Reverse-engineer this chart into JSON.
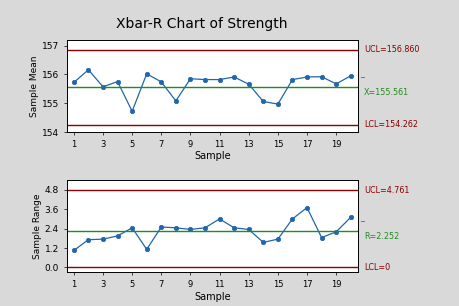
{
  "title": "Xbar-R Chart of Strength",
  "xbar_data": [
    155.72,
    156.16,
    155.57,
    155.75,
    154.72,
    156.02,
    155.74,
    155.08,
    155.85,
    155.82,
    155.82,
    155.91,
    155.66,
    155.06,
    154.97,
    155.82,
    155.91,
    155.92,
    155.67,
    155.95
  ],
  "range_data": [
    1.05,
    1.72,
    1.75,
    1.95,
    2.45,
    1.12,
    2.5,
    2.45,
    2.35,
    2.45,
    3.0,
    2.45,
    2.35,
    1.55,
    1.75,
    3.0,
    3.7,
    1.85,
    2.2,
    3.1
  ],
  "xbar_ucl": 156.86,
  "xbar_mean": 155.561,
  "xbar_lcl": 154.262,
  "range_ucl": 4.761,
  "range_mean": 2.252,
  "range_lcl": 0,
  "xbar_ylim": [
    154.0,
    157.2
  ],
  "xbar_yticks": [
    154,
    155,
    156,
    157
  ],
  "range_ylim": [
    -0.3,
    5.4
  ],
  "range_yticks": [
    0.0,
    1.2,
    2.4,
    3.6,
    4.8
  ],
  "bg_color": "#d9d9d9",
  "plot_bg": "#ffffff",
  "line_color": "#2166ac",
  "marker_color": "#2166ac",
  "ucl_lcl_color": "#8b0000",
  "center_color": "#228B22",
  "xlabel": "Sample",
  "xbar_ylabel": "Sample Mean",
  "range_ylabel": "Sample Range",
  "xbar_ucl_label": "UCL=156.860",
  "xbar_mean_label": "=\nX=155.561",
  "xbar_lcl_label": "LCL=154.262",
  "range_ucl_label": "UCL=4.761",
  "range_mean_label": "R=2.252",
  "range_lcl_label": "LCL=0"
}
